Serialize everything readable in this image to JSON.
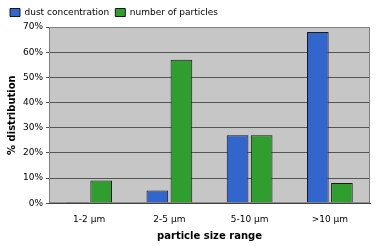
{
  "chart_data": {
    "type": "bar",
    "x_label": "particle size range",
    "y_label": "% distribution",
    "categories": [
      "1-2 µm",
      "2-5 µm",
      "5-10 µm",
      ">10 µm"
    ],
    "series": [
      {
        "name": "dust concentration",
        "color": "#3366cc",
        "values": [
          0.5,
          5,
          27,
          68
        ]
      },
      {
        "name": "number of particles",
        "color": "#2f9e2f",
        "values": [
          9,
          57,
          27,
          8
        ]
      }
    ],
    "ylim": [
      0,
      70
    ],
    "yticks": [
      {
        "value": 0,
        "label": "0%"
      },
      {
        "value": 10,
        "label": "10%"
      },
      {
        "value": 20,
        "label": "20%"
      },
      {
        "value": 30,
        "label": "30%"
      },
      {
        "value": 40,
        "label": "40%"
      },
      {
        "value": 50,
        "label": "50%"
      },
      {
        "value": 60,
        "label": "60%"
      },
      {
        "value": 70,
        "label": "70%"
      }
    ],
    "grid": true,
    "legend": "upper left"
  }
}
